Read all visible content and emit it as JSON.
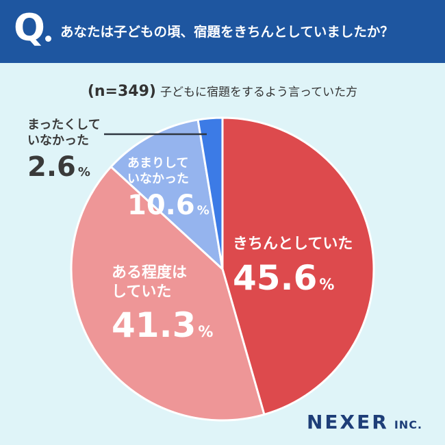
{
  "header": {
    "q_mark": "Q",
    "question": "あなたは子どもの頃、宿題をきちんとしていましたか？"
  },
  "subtitle": {
    "n_label": "(n=349)",
    "text": "子どもに宿題をするよう言っていた方"
  },
  "chart_data": {
    "type": "pie",
    "title": "",
    "slices": [
      {
        "label": "きちんとしていた",
        "value": 45.6,
        "color": "#dd4a4d"
      },
      {
        "label": "ある程度はしていた",
        "value": 41.3,
        "color": "#ee9697"
      },
      {
        "label": "あまりしていなかった",
        "value": 10.6,
        "color": "#95b4ee"
      },
      {
        "label": "まったくしていなかった",
        "value": 2.6,
        "color": "#3c7be6"
      }
    ],
    "start_angle": "12 o'clock",
    "direction": "clockwise"
  },
  "labels": [
    {
      "line1": "きちんとしていた",
      "line2": "",
      "percent": "45.6",
      "unit": "%"
    },
    {
      "line1": "ある程度は",
      "line2": "していた",
      "percent": "41.3",
      "unit": "%"
    },
    {
      "line1": "あまりして",
      "line2": "いなかった",
      "percent": "10.6",
      "unit": "%"
    },
    {
      "line1": "まったくして",
      "line2": "いなかった",
      "percent": "2.6",
      "unit": "%"
    }
  ],
  "logo": {
    "name": "NEXER",
    "suffix": "INC."
  }
}
